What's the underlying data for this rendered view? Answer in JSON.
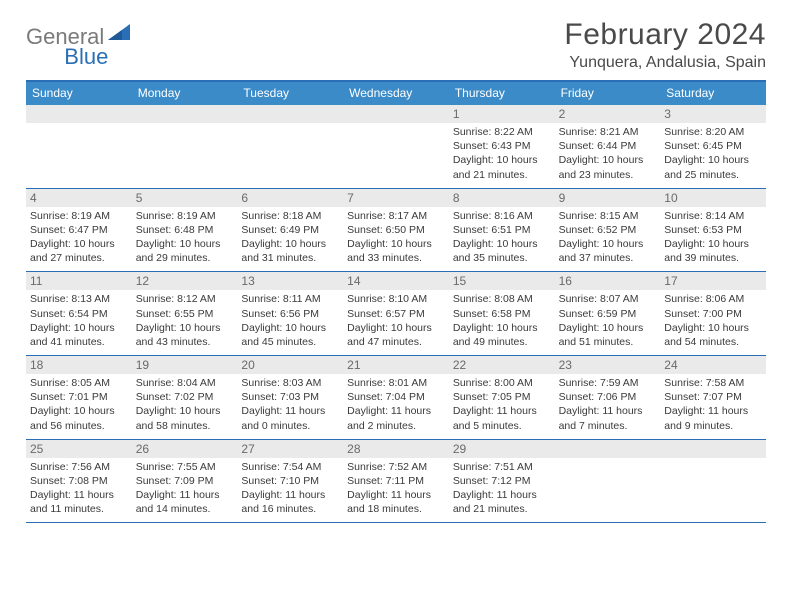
{
  "logo": {
    "text1": "General",
    "text2": "Blue",
    "color1": "#7a7a7a",
    "color2": "#2a6fb5"
  },
  "title": "February 2024",
  "location": "Yunquera, Andalusia, Spain",
  "colors": {
    "header_bg": "#3b8bc9",
    "header_border": "#2a6fb5",
    "band_bg": "#eaeaea",
    "text": "#3a3a3a",
    "daynum": "#6a6a6a",
    "title_text": "#4a4a4a"
  },
  "weekdays": [
    "Sunday",
    "Monday",
    "Tuesday",
    "Wednesday",
    "Thursday",
    "Friday",
    "Saturday"
  ],
  "weeks": [
    [
      null,
      null,
      null,
      null,
      {
        "n": "1",
        "sr": "8:22 AM",
        "ss": "6:43 PM",
        "dl1": "Daylight: 10 hours",
        "dl2": "and 21 minutes."
      },
      {
        "n": "2",
        "sr": "8:21 AM",
        "ss": "6:44 PM",
        "dl1": "Daylight: 10 hours",
        "dl2": "and 23 minutes."
      },
      {
        "n": "3",
        "sr": "8:20 AM",
        "ss": "6:45 PM",
        "dl1": "Daylight: 10 hours",
        "dl2": "and 25 minutes."
      }
    ],
    [
      {
        "n": "4",
        "sr": "8:19 AM",
        "ss": "6:47 PM",
        "dl1": "Daylight: 10 hours",
        "dl2": "and 27 minutes."
      },
      {
        "n": "5",
        "sr": "8:19 AM",
        "ss": "6:48 PM",
        "dl1": "Daylight: 10 hours",
        "dl2": "and 29 minutes."
      },
      {
        "n": "6",
        "sr": "8:18 AM",
        "ss": "6:49 PM",
        "dl1": "Daylight: 10 hours",
        "dl2": "and 31 minutes."
      },
      {
        "n": "7",
        "sr": "8:17 AM",
        "ss": "6:50 PM",
        "dl1": "Daylight: 10 hours",
        "dl2": "and 33 minutes."
      },
      {
        "n": "8",
        "sr": "8:16 AM",
        "ss": "6:51 PM",
        "dl1": "Daylight: 10 hours",
        "dl2": "and 35 minutes."
      },
      {
        "n": "9",
        "sr": "8:15 AM",
        "ss": "6:52 PM",
        "dl1": "Daylight: 10 hours",
        "dl2": "and 37 minutes."
      },
      {
        "n": "10",
        "sr": "8:14 AM",
        "ss": "6:53 PM",
        "dl1": "Daylight: 10 hours",
        "dl2": "and 39 minutes."
      }
    ],
    [
      {
        "n": "11",
        "sr": "8:13 AM",
        "ss": "6:54 PM",
        "dl1": "Daylight: 10 hours",
        "dl2": "and 41 minutes."
      },
      {
        "n": "12",
        "sr": "8:12 AM",
        "ss": "6:55 PM",
        "dl1": "Daylight: 10 hours",
        "dl2": "and 43 minutes."
      },
      {
        "n": "13",
        "sr": "8:11 AM",
        "ss": "6:56 PM",
        "dl1": "Daylight: 10 hours",
        "dl2": "and 45 minutes."
      },
      {
        "n": "14",
        "sr": "8:10 AM",
        "ss": "6:57 PM",
        "dl1": "Daylight: 10 hours",
        "dl2": "and 47 minutes."
      },
      {
        "n": "15",
        "sr": "8:08 AM",
        "ss": "6:58 PM",
        "dl1": "Daylight: 10 hours",
        "dl2": "and 49 minutes."
      },
      {
        "n": "16",
        "sr": "8:07 AM",
        "ss": "6:59 PM",
        "dl1": "Daylight: 10 hours",
        "dl2": "and 51 minutes."
      },
      {
        "n": "17",
        "sr": "8:06 AM",
        "ss": "7:00 PM",
        "dl1": "Daylight: 10 hours",
        "dl2": "and 54 minutes."
      }
    ],
    [
      {
        "n": "18",
        "sr": "8:05 AM",
        "ss": "7:01 PM",
        "dl1": "Daylight: 10 hours",
        "dl2": "and 56 minutes."
      },
      {
        "n": "19",
        "sr": "8:04 AM",
        "ss": "7:02 PM",
        "dl1": "Daylight: 10 hours",
        "dl2": "and 58 minutes."
      },
      {
        "n": "20",
        "sr": "8:03 AM",
        "ss": "7:03 PM",
        "dl1": "Daylight: 11 hours",
        "dl2": "and 0 minutes."
      },
      {
        "n": "21",
        "sr": "8:01 AM",
        "ss": "7:04 PM",
        "dl1": "Daylight: 11 hours",
        "dl2": "and 2 minutes."
      },
      {
        "n": "22",
        "sr": "8:00 AM",
        "ss": "7:05 PM",
        "dl1": "Daylight: 11 hours",
        "dl2": "and 5 minutes."
      },
      {
        "n": "23",
        "sr": "7:59 AM",
        "ss": "7:06 PM",
        "dl1": "Daylight: 11 hours",
        "dl2": "and 7 minutes."
      },
      {
        "n": "24",
        "sr": "7:58 AM",
        "ss": "7:07 PM",
        "dl1": "Daylight: 11 hours",
        "dl2": "and 9 minutes."
      }
    ],
    [
      {
        "n": "25",
        "sr": "7:56 AM",
        "ss": "7:08 PM",
        "dl1": "Daylight: 11 hours",
        "dl2": "and 11 minutes."
      },
      {
        "n": "26",
        "sr": "7:55 AM",
        "ss": "7:09 PM",
        "dl1": "Daylight: 11 hours",
        "dl2": "and 14 minutes."
      },
      {
        "n": "27",
        "sr": "7:54 AM",
        "ss": "7:10 PM",
        "dl1": "Daylight: 11 hours",
        "dl2": "and 16 minutes."
      },
      {
        "n": "28",
        "sr": "7:52 AM",
        "ss": "7:11 PM",
        "dl1": "Daylight: 11 hours",
        "dl2": "and 18 minutes."
      },
      {
        "n": "29",
        "sr": "7:51 AM",
        "ss": "7:12 PM",
        "dl1": "Daylight: 11 hours",
        "dl2": "and 21 minutes."
      },
      null,
      null
    ]
  ],
  "labels": {
    "sunrise_prefix": "Sunrise: ",
    "sunset_prefix": "Sunset: "
  }
}
